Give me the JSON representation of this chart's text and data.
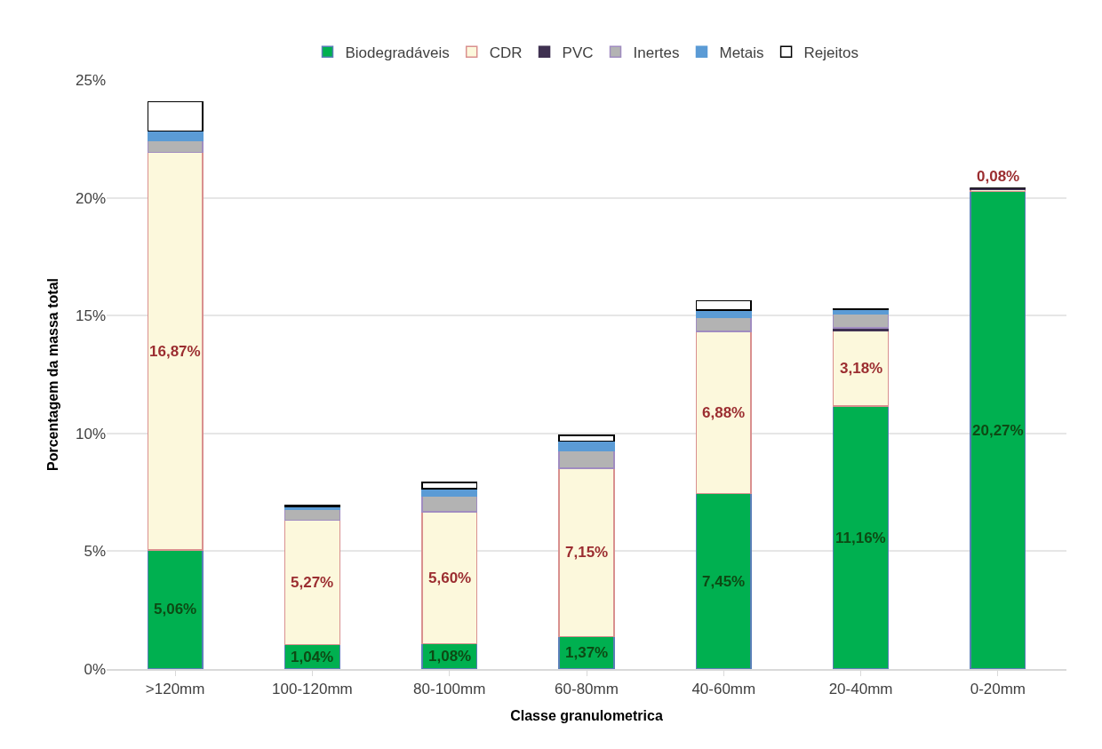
{
  "chart_data": {
    "type": "bar",
    "stacked": true,
    "xlabel": "Classe granulometrica",
    "ylabel": "Porcentagem da massa total",
    "categories": [
      ">120mm",
      "100-120mm",
      "80-100mm",
      "60-80mm",
      "40-60mm",
      "20-40mm",
      "0-20mm"
    ],
    "series": [
      {
        "name": "Biodegradáveis",
        "color": "#00b050",
        "values": [
          5.06,
          1.04,
          1.08,
          1.37,
          7.45,
          11.16,
          20.27
        ],
        "value_labels": [
          "5,06%",
          "1,04%",
          "1,08%",
          "1,37%",
          "7,45%",
          "11,16%",
          "20,27%"
        ]
      },
      {
        "name": "CDR",
        "color": "#fcf8dc",
        "values": [
          16.87,
          5.27,
          5.6,
          7.15,
          6.88,
          3.18,
          0.08
        ],
        "value_labels": [
          "16,87%",
          "5,27%",
          "5,60%",
          "7,15%",
          "6,88%",
          "3,18%",
          "0,08%"
        ]
      },
      {
        "name": "PVC",
        "color": "#3f3151",
        "values": [
          null,
          null,
          null,
          null,
          null,
          0.14,
          0.06
        ]
      },
      {
        "name": "Inertes",
        "color": "#b3b3b3",
        "values": [
          0.5,
          0.45,
          0.66,
          0.75,
          0.6,
          0.6,
          0
        ]
      },
      {
        "name": "Metais",
        "color": "#5b9bd5",
        "values": [
          0.4,
          0.13,
          0.32,
          0.4,
          0.3,
          0.18,
          0
        ]
      },
      {
        "name": "Rejeitos",
        "color": "#ffffff",
        "values": [
          1.25,
          0.05,
          0.25,
          0.25,
          0.4,
          0.02,
          0
        ]
      }
    ],
    "ylim": [
      0,
      25
    ],
    "yticks": [
      {
        "value": 0,
        "label": "0%"
      },
      {
        "value": 5,
        "label": "5%"
      },
      {
        "value": 10,
        "label": "10%"
      },
      {
        "value": 15,
        "label": "15%"
      },
      {
        "value": 20,
        "label": "20%"
      },
      {
        "value": 25,
        "label": "25%"
      }
    ],
    "grid": "y",
    "legend": "top"
  }
}
